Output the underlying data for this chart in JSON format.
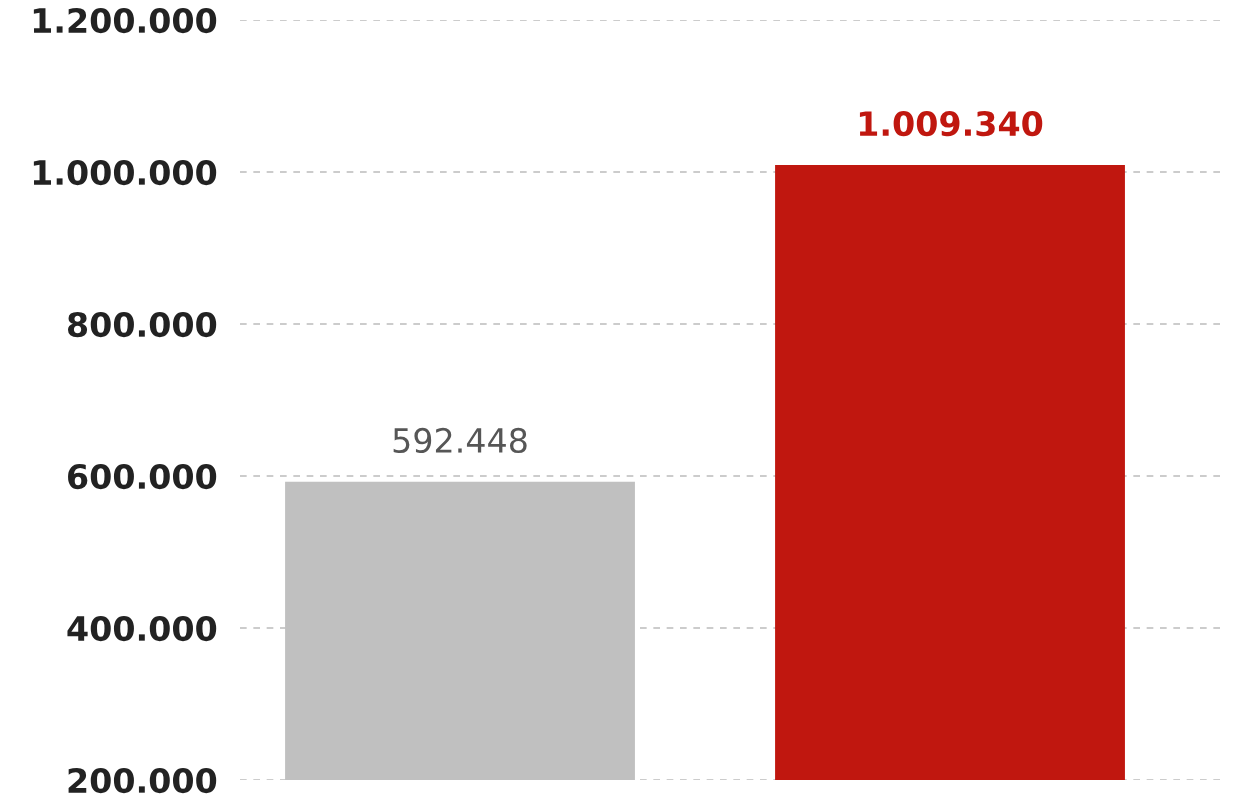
{
  "chart_data": {
    "type": "bar",
    "categories": [
      null,
      null
    ],
    "values": [
      592448,
      1009340
    ],
    "colors": [
      "#c0c0c0",
      "#c0170f"
    ],
    "ylim": [
      200000,
      1200000
    ],
    "yticks": [
      {
        "value": 200000,
        "label": "200.000"
      },
      {
        "value": 400000,
        "label": "400.000"
      },
      {
        "value": 600000,
        "label": "600.000"
      },
      {
        "value": 800000,
        "label": "800.000"
      },
      {
        "value": 1000000,
        "label": "1.000.000"
      },
      {
        "value": 1200000,
        "label": "1.200.000"
      }
    ],
    "value_labels": [
      "592.448",
      "1.009.340"
    ],
    "grid": "y",
    "legend": false
  }
}
